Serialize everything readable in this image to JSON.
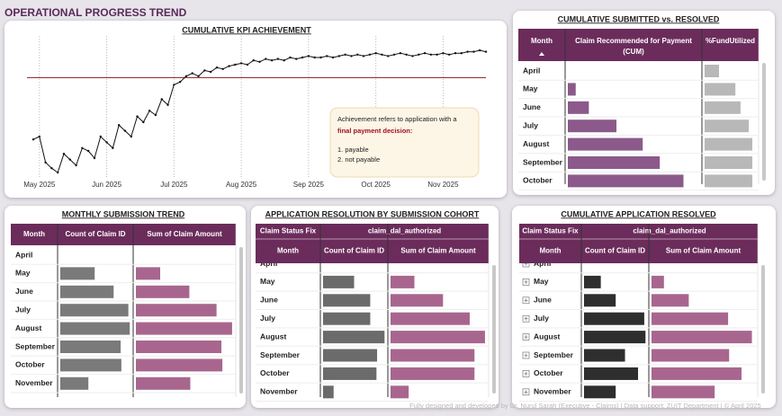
{
  "title": "OPERATIONAL PROGRESS TREND",
  "footer": "Fully designed and developed by Dr. Nurul Sarah (Executive - Claims) | Data support: ZUIT Department | © April 2025",
  "chart_data": [
    {
      "type": "line",
      "title": "CUMULATIVE KPI ACHIEVEMENT",
      "color": "#111111",
      "grid": true,
      "categories": [
        null,
        "May 2025",
        null,
        null,
        null,
        null,
        null,
        null,
        null,
        null,
        null,
        null,
        "Jun 2025",
        null,
        null,
        null,
        null,
        null,
        null,
        null,
        null,
        null,
        null,
        "Jul 2025",
        null,
        null,
        null,
        null,
        null,
        null,
        null,
        null,
        null,
        null,
        "Aug 2025",
        null,
        null,
        null,
        null,
        null,
        null,
        null,
        null,
        null,
        null,
        "Sep 2025",
        null,
        null,
        null,
        null,
        null,
        null,
        null,
        null,
        null,
        null,
        "Oct 2025",
        null,
        null,
        null,
        null,
        null,
        null,
        null,
        null,
        null,
        null,
        "Nov 2025",
        null,
        null,
        null,
        null,
        null,
        null,
        null
      ],
      "values": [
        28,
        30,
        12,
        8,
        5,
        18,
        14,
        10,
        22,
        20,
        15,
        30,
        26,
        22,
        38,
        34,
        30,
        44,
        40,
        48,
        45,
        56,
        52,
        66,
        68,
        72,
        74,
        72,
        76,
        75,
        78,
        77,
        79,
        80,
        81,
        80,
        83,
        82,
        84,
        83,
        84,
        83,
        85,
        84,
        85,
        86,
        85,
        85,
        86,
        85,
        86,
        87,
        86,
        87,
        86,
        87,
        88,
        87,
        86,
        87,
        88,
        87,
        86,
        87,
        88,
        87,
        87,
        88,
        87,
        88,
        88,
        89,
        89,
        90,
        89
      ],
      "ylim": [
        0,
        100
      ],
      "reference_line": {
        "value": 71,
        "color": "#8b1a1a"
      },
      "annotation": {
        "intro": "Achievement refers to application with a",
        "highlight": "final payment decision:",
        "items": [
          "1. payable",
          "2. not payable"
        ]
      }
    },
    {
      "type": "table_bar",
      "title": "CUMULATIVE SUBMITTED vs. RESOLVED",
      "category_header": "Month",
      "categories": [
        "April",
        "May",
        "June",
        "July",
        "August",
        "September",
        "October"
      ],
      "series": [
        {
          "name": "Claim Recommended for Payment (CUM)",
          "color": "#8b5a8a",
          "values": [
            null,
            6,
            16,
            37,
            57,
            70,
            88
          ]
        },
        {
          "name": "%FundUtilized",
          "color": "#b8b8b8",
          "values": [
            28,
            60,
            70,
            86,
            93,
            93,
            93
          ]
        }
      ],
      "xlim": [
        0,
        100
      ]
    },
    {
      "type": "table_bar",
      "title": "MONTHLY SUBMISSION TREND",
      "category_header": "Month",
      "categories": [
        "April",
        "May",
        "June",
        "July",
        "August",
        "September",
        "October",
        "November"
      ],
      "series": [
        {
          "name": "Count of Claim ID",
          "color": "#7a7a7a",
          "values": [
            null,
            49,
            76,
            97,
            99,
            86,
            87,
            40
          ]
        },
        {
          "name": "Sum of Claim Amount",
          "color": "#a8668f",
          "values": [
            null,
            25,
            55,
            83,
            99,
            88,
            89,
            56
          ]
        }
      ],
      "xlim": [
        0,
        100
      ]
    },
    {
      "type": "table_bar",
      "title": "APPLICATION RESOLUTION BY SUBMISSION COHORT",
      "category_header": "Month",
      "group_header": {
        "label": "Claim Status Fix",
        "value": "claim_dal_authorized"
      },
      "categories": [
        "April",
        "May",
        "June",
        "July",
        "August",
        "September",
        "October",
        "November"
      ],
      "series": [
        {
          "name": "Count of Claim ID",
          "color": "#6b6b6b",
          "values": [
            null,
            50,
            76,
            76,
            99,
            87,
            86,
            17
          ]
        },
        {
          "name": "Sum of Claim Amount",
          "color": "#a8668f",
          "values": [
            null,
            25,
            55,
            83,
            99,
            88,
            88,
            19
          ]
        }
      ],
      "xlim": [
        0,
        100
      ]
    },
    {
      "type": "table_bar",
      "title": "CUMULATIVE APPLICATION RESOLVED",
      "category_header": "Month",
      "group_header": {
        "label": "Claim Status Fix",
        "value": "claim_dal_authorized"
      },
      "expand_icons": true,
      "categories": [
        "April",
        "May",
        "June",
        "July",
        "August",
        "September",
        "October",
        "November"
      ],
      "series": [
        {
          "name": "Count of Claim ID",
          "color": "#2e2e2e",
          "values": [
            null,
            27,
            51,
            97,
            99,
            66,
            87,
            51
          ]
        },
        {
          "name": "Sum of Claim Amount",
          "color": "#a8668f",
          "values": [
            null,
            12,
            36,
            74,
            97,
            75,
            87,
            61
          ]
        }
      ],
      "xlim": [
        0,
        100
      ]
    }
  ]
}
